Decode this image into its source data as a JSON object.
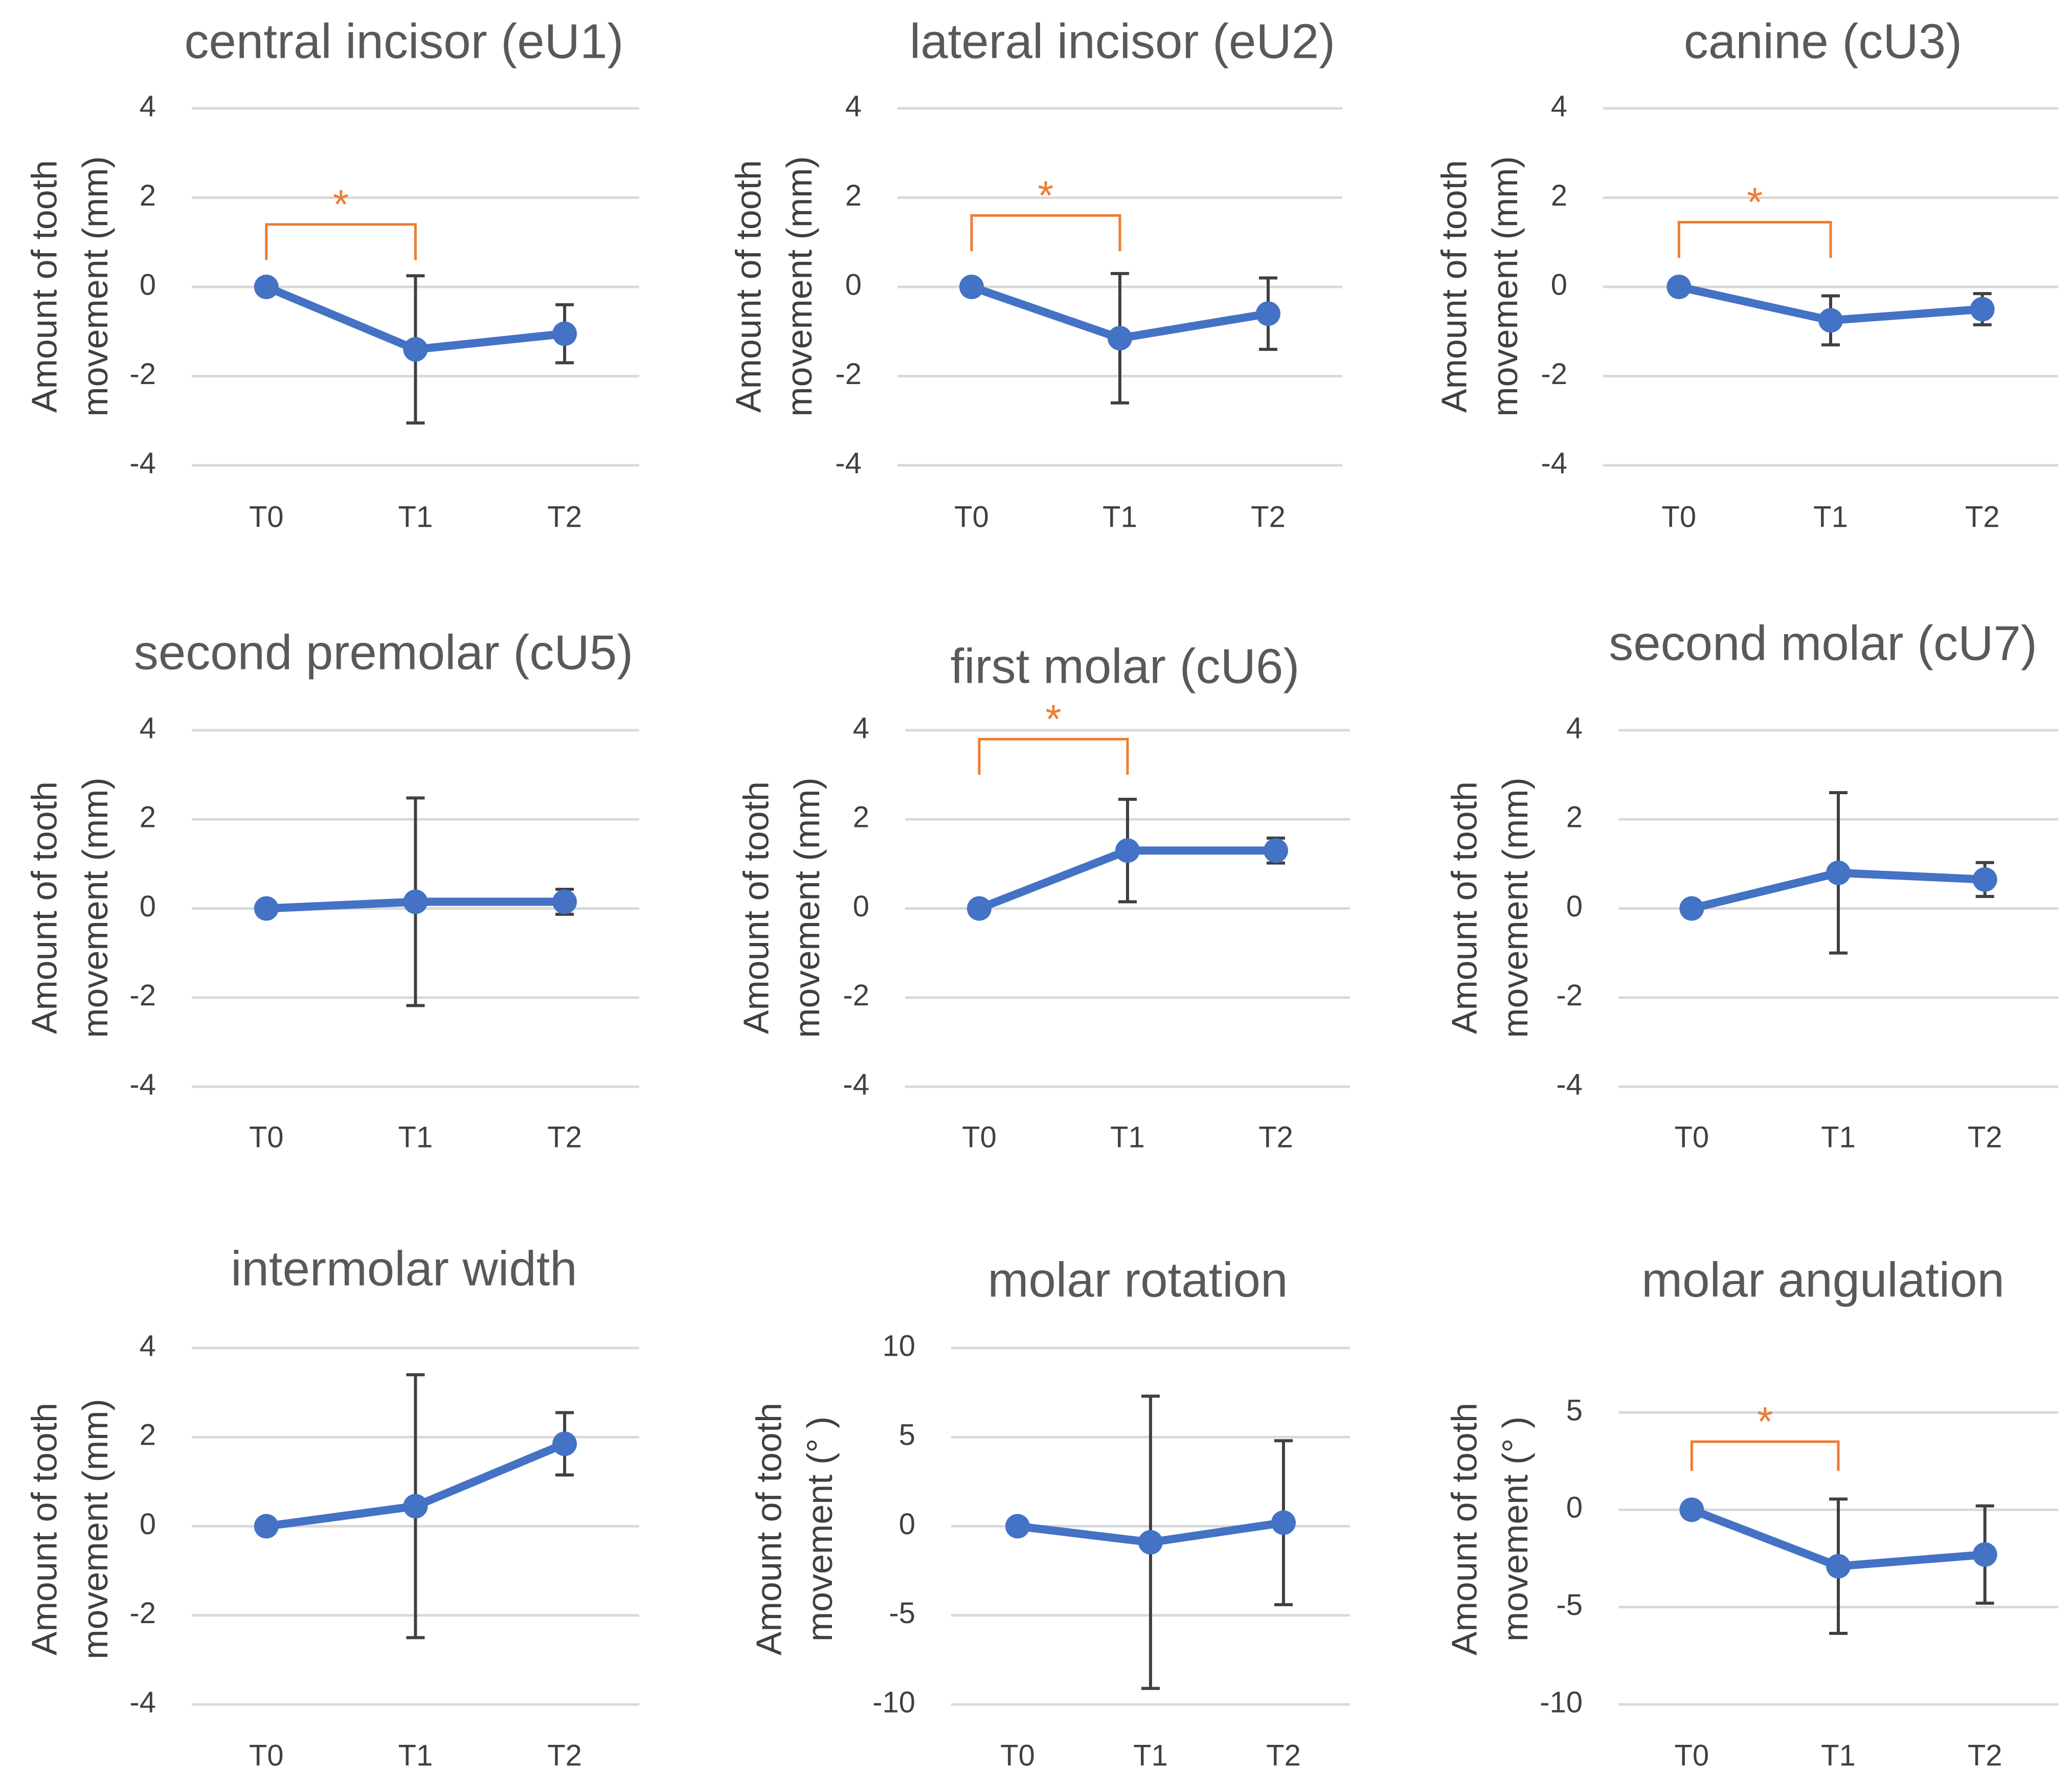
{
  "figure": {
    "colors": {
      "series": "#4472C4",
      "error_bar": "#404040",
      "gridline": "#D9D9D9",
      "significance": "#ED7D31",
      "title_text": "#595959",
      "axis_text": "#404040"
    },
    "significance_symbol": "*"
  },
  "chart_data": [
    {
      "type": "line",
      "title": "central incisor (eU1)",
      "ylabel": [
        "Amount of tooth",
        "movement (mm)"
      ],
      "ylim": [
        -4,
        4
      ],
      "yticks": [
        -4,
        -2,
        0,
        2,
        4
      ],
      "ytick_labels": [
        "-4",
        "-2",
        "0",
        "2",
        "4"
      ],
      "categories": [
        "T0",
        "T1",
        "T2"
      ],
      "values": [
        0,
        -1.4,
        -1.05
      ],
      "error": [
        0,
        1.65,
        0.65
      ],
      "significance": {
        "from": "T0",
        "to": "T1",
        "level": 1.4,
        "drop": 0.8
      }
    },
    {
      "type": "line",
      "title": "lateral incisor (eU2)",
      "ylabel": [
        "Amount of tooth",
        "movement (mm)"
      ],
      "ylim": [
        -4,
        4
      ],
      "yticks": [
        -4,
        -2,
        0,
        2,
        4
      ],
      "ytick_labels": [
        "-4",
        "-2",
        "0",
        "2",
        "4"
      ],
      "categories": [
        "T0",
        "T1",
        "T2"
      ],
      "values": [
        0,
        -1.15,
        -0.6
      ],
      "error": [
        0,
        1.45,
        0.8
      ],
      "significance": {
        "from": "T0",
        "to": "T1",
        "level": 1.6,
        "drop": 0.8
      }
    },
    {
      "type": "line",
      "title": "canine (cU3)",
      "ylabel": [
        "Amount of tooth",
        "movement (mm)"
      ],
      "ylim": [
        -4,
        4
      ],
      "yticks": [
        -4,
        -2,
        0,
        2,
        4
      ],
      "ytick_labels": [
        "-4",
        "-2",
        "0",
        "2",
        "4"
      ],
      "categories": [
        "T0",
        "T1",
        "T2"
      ],
      "values": [
        0,
        -0.75,
        -0.5
      ],
      "error": [
        0,
        0.55,
        0.35
      ],
      "significance": {
        "from": "T0",
        "to": "T1",
        "level": 1.45,
        "drop": 0.8
      }
    },
    {
      "type": "line",
      "title": "second premolar (cU5)",
      "ylabel": [
        "Amount of tooth",
        "movement (mm)"
      ],
      "ylim": [
        -4,
        4
      ],
      "yticks": [
        -4,
        -2,
        0,
        2,
        4
      ],
      "ytick_labels": [
        "-4",
        "-2",
        "0",
        "2",
        "4"
      ],
      "categories": [
        "T0",
        "T1",
        "T2"
      ],
      "values": [
        0,
        0.15,
        0.15
      ],
      "error": [
        0,
        2.33,
        0.28
      ],
      "significance": null
    },
    {
      "type": "line",
      "title": "first molar (cU6)",
      "ylabel": [
        "Amount of tooth",
        "movement (mm)"
      ],
      "ylim": [
        -4,
        4
      ],
      "yticks": [
        -4,
        -2,
        0,
        2,
        4
      ],
      "ytick_labels": [
        "-4",
        "-2",
        "0",
        "2",
        "4"
      ],
      "categories": [
        "T0",
        "T1",
        "T2"
      ],
      "values": [
        0,
        1.3,
        1.3
      ],
      "error": [
        0,
        1.15,
        0.28
      ],
      "significance": {
        "from": "T0",
        "to": "T1",
        "level": 3.8,
        "drop": 0.8
      }
    },
    {
      "type": "line",
      "title": "second molar (cU7)",
      "ylabel": [
        "Amount of tooth",
        "movement (mm)"
      ],
      "ylim": [
        -4,
        4
      ],
      "yticks": [
        -4,
        -2,
        0,
        2,
        4
      ],
      "ytick_labels": [
        "-4",
        "-2",
        "0",
        "2",
        "4"
      ],
      "categories": [
        "T0",
        "T1",
        "T2"
      ],
      "values": [
        0,
        0.8,
        0.65
      ],
      "error": [
        0,
        1.8,
        0.38
      ],
      "significance": null
    },
    {
      "type": "line",
      "title": "intermolar width",
      "ylabel": [
        "Amount of tooth",
        "movement (mm)"
      ],
      "ylim": [
        -4,
        4
      ],
      "yticks": [
        -4,
        -2,
        0,
        2,
        4
      ],
      "ytick_labels": [
        "-4",
        "-2",
        "0",
        "2",
        "4"
      ],
      "categories": [
        "T0",
        "T1",
        "T2"
      ],
      "values": [
        0,
        0.45,
        1.85
      ],
      "error": [
        0,
        2.95,
        0.7
      ],
      "significance": null
    },
    {
      "type": "line",
      "title": "molar rotation",
      "ylabel": [
        "Amount of tooth",
        "movement  (°  )"
      ],
      "ylim": [
        -10,
        10
      ],
      "yticks": [
        -10,
        -5,
        0,
        5,
        10
      ],
      "ytick_labels": [
        "-10",
        "-5",
        "0",
        "5",
        "10"
      ],
      "categories": [
        "T0",
        "T1",
        "T2"
      ],
      "values": [
        0,
        -0.9,
        0.2
      ],
      "error": [
        0,
        8.2,
        4.6
      ],
      "significance": null
    },
    {
      "type": "line",
      "title": "molar angulation",
      "ylabel": [
        "Amount of tooth",
        "movement (°  )"
      ],
      "ylim": [
        -10,
        5
      ],
      "yticks": [
        -10,
        -5,
        0,
        5
      ],
      "ytick_labels": [
        "-10",
        "-5",
        "0",
        "5"
      ],
      "categories": [
        "T0",
        "T1",
        "T2"
      ],
      "values": [
        0,
        -2.9,
        -2.3
      ],
      "error": [
        0,
        3.45,
        2.5
      ],
      "significance": {
        "from": "T0",
        "to": "T1",
        "level": 3.5,
        "drop": 1.5
      }
    }
  ]
}
